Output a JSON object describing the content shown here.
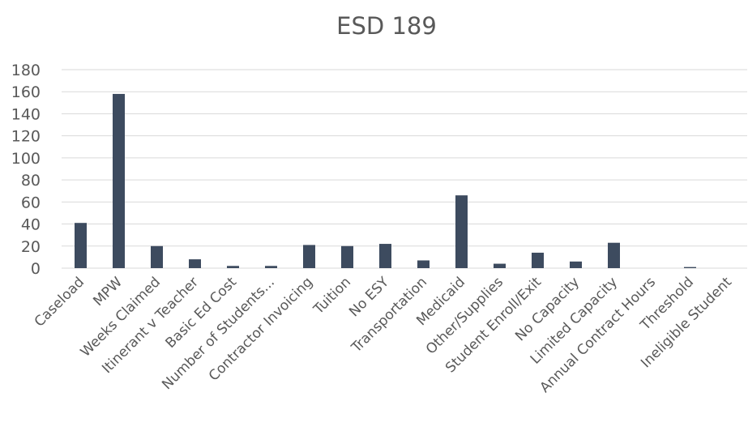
{
  "chart_data": {
    "type": "bar",
    "title": "ESD 189",
    "xlabel": "",
    "ylabel": "",
    "ylim": [
      0,
      180
    ],
    "yticks": [
      0,
      20,
      40,
      60,
      80,
      100,
      120,
      140,
      160,
      180
    ],
    "grid": true,
    "legend": "none",
    "bar_color": "#3d4b5f",
    "categories": [
      "Caseload",
      "MPW",
      "Weeks Claimed",
      "Itinerant v Teacher",
      "Basic Ed Cost",
      "Number of Students...",
      "Contractor Invoicing",
      "Tuition",
      "No ESY",
      "Transportation",
      "Medicaid",
      "Other/Supplies",
      "Student Enroll/Exit",
      "No Capacity",
      "Limited Capacity",
      "Annual Contract Hours",
      "Threshold",
      "Ineligible Student"
    ],
    "values": [
      41,
      158,
      20,
      8,
      2,
      2,
      21,
      20,
      22,
      7,
      66,
      4,
      14,
      6,
      23,
      0,
      1,
      0
    ]
  }
}
